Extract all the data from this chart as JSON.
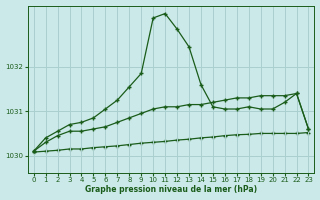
{
  "title": "Graphe pression niveau de la mer (hPa)",
  "background_color": "#cce9e9",
  "grid_color": "#aacfcf",
  "line_color": "#1a5c1a",
  "xlim": [
    -0.5,
    23.5
  ],
  "ylim": [
    1029.62,
    1033.38
  ],
  "xticks": [
    0,
    1,
    2,
    3,
    4,
    5,
    6,
    7,
    8,
    9,
    10,
    11,
    12,
    13,
    14,
    15,
    16,
    17,
    18,
    19,
    20,
    21,
    22,
    23
  ],
  "yticks": [
    1030,
    1031,
    1032
  ],
  "series_peak": [
    1030.1,
    1030.4,
    1030.55,
    1030.7,
    1030.75,
    1030.85,
    1031.05,
    1031.25,
    1031.55,
    1031.85,
    1033.1,
    1033.2,
    1032.85,
    1032.45,
    1031.6,
    1031.1,
    1031.05,
    1031.05,
    1031.1,
    1031.05,
    1031.05,
    1031.2,
    1031.4,
    1030.6
  ],
  "series_mid": [
    1030.1,
    1030.3,
    1030.45,
    1030.55,
    1030.55,
    1030.6,
    1030.65,
    1030.75,
    1030.85,
    1030.95,
    1031.05,
    1031.1,
    1031.1,
    1031.15,
    1031.15,
    1031.2,
    1031.25,
    1031.3,
    1031.3,
    1031.35,
    1031.35,
    1031.35,
    1031.4,
    1030.6
  ],
  "series_flat": [
    1030.08,
    1030.1,
    1030.12,
    1030.15,
    1030.15,
    1030.18,
    1030.2,
    1030.22,
    1030.25,
    1030.28,
    1030.3,
    1030.32,
    1030.35,
    1030.37,
    1030.4,
    1030.42,
    1030.45,
    1030.47,
    1030.48,
    1030.5,
    1030.5,
    1030.5,
    1030.5,
    1030.52
  ]
}
